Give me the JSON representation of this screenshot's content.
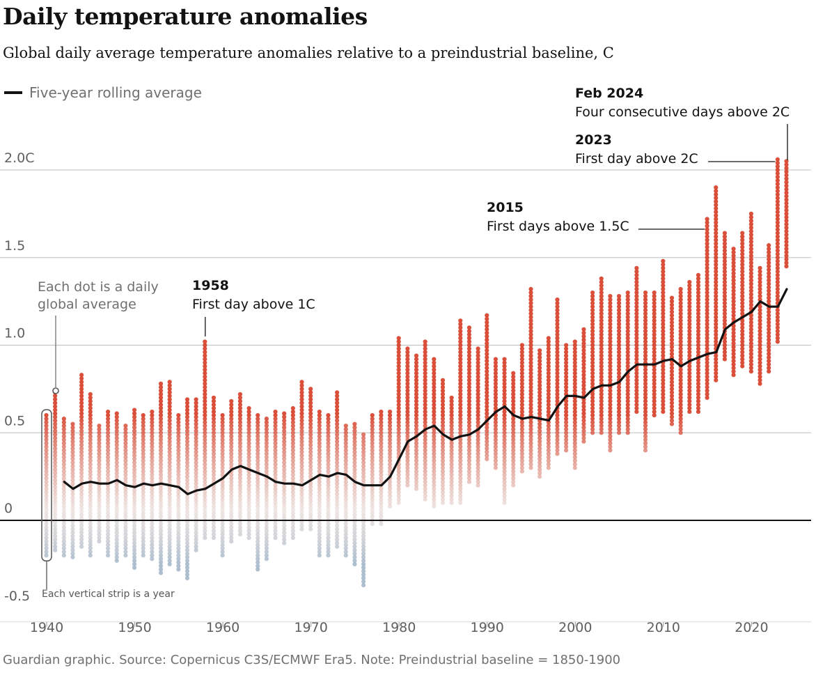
{
  "header": {
    "title": "Daily temperature anomalies",
    "subtitle": "Global daily average temperature anomalies relative to a preindustrial baseline, C"
  },
  "legend": {
    "label": "Five-year rolling average"
  },
  "footer": {
    "source": "Guardian graphic. Source: Copernicus C3S/ECMWF Era5. Note: Preindustrial baseline = 1850-1900"
  },
  "colors": {
    "warm": "#d7412a",
    "cool": "#9fb3c8",
    "line": "#121212",
    "grid": "#bdbdbd"
  },
  "chart_data": {
    "type": "scatter",
    "ylim": [
      -0.5,
      2.0
    ],
    "xlim": [
      1940,
      2024
    ],
    "x_ticks": [
      "1940",
      "1950",
      "1960",
      "1970",
      "1980",
      "1990",
      "2000",
      "2010",
      "2020"
    ],
    "y_ticks": [
      "2.0C",
      "1.5",
      "1.0",
      "0.5",
      "0",
      "-0.5"
    ],
    "annual_ranges": [
      {
        "year": 1940,
        "min": -0.2,
        "max": 0.6
      },
      {
        "year": 1941,
        "min": -0.17,
        "max": 0.73
      },
      {
        "year": 1942,
        "min": -0.2,
        "max": 0.59
      },
      {
        "year": 1943,
        "min": -0.21,
        "max": 0.55
      },
      {
        "year": 1944,
        "min": -0.15,
        "max": 0.83
      },
      {
        "year": 1945,
        "min": -0.2,
        "max": 0.72
      },
      {
        "year": 1946,
        "min": -0.12,
        "max": 0.54
      },
      {
        "year": 1947,
        "min": -0.2,
        "max": 0.62
      },
      {
        "year": 1948,
        "min": -0.23,
        "max": 0.61
      },
      {
        "year": 1949,
        "min": -0.2,
        "max": 0.55
      },
      {
        "year": 1950,
        "min": -0.27,
        "max": 0.63
      },
      {
        "year": 1951,
        "min": -0.2,
        "max": 0.6
      },
      {
        "year": 1952,
        "min": -0.22,
        "max": 0.62
      },
      {
        "year": 1953,
        "min": -0.3,
        "max": 0.78
      },
      {
        "year": 1954,
        "min": -0.25,
        "max": 0.8
      },
      {
        "year": 1955,
        "min": -0.28,
        "max": 0.6
      },
      {
        "year": 1956,
        "min": -0.33,
        "max": 0.7
      },
      {
        "year": 1957,
        "min": -0.17,
        "max": 0.7
      },
      {
        "year": 1958,
        "min": -0.1,
        "max": 1.03
      },
      {
        "year": 1959,
        "min": -0.1,
        "max": 0.7
      },
      {
        "year": 1960,
        "min": -0.2,
        "max": 0.6
      },
      {
        "year": 1961,
        "min": -0.12,
        "max": 0.68
      },
      {
        "year": 1962,
        "min": -0.08,
        "max": 0.72
      },
      {
        "year": 1963,
        "min": -0.1,
        "max": 0.64
      },
      {
        "year": 1964,
        "min": -0.28,
        "max": 0.6
      },
      {
        "year": 1965,
        "min": -0.22,
        "max": 0.58
      },
      {
        "year": 1966,
        "min": -0.1,
        "max": 0.62
      },
      {
        "year": 1967,
        "min": -0.13,
        "max": 0.61
      },
      {
        "year": 1968,
        "min": -0.1,
        "max": 0.65
      },
      {
        "year": 1969,
        "min": -0.05,
        "max": 0.8
      },
      {
        "year": 1970,
        "min": -0.05,
        "max": 0.75
      },
      {
        "year": 1971,
        "min": -0.2,
        "max": 0.62
      },
      {
        "year": 1972,
        "min": -0.2,
        "max": 0.6
      },
      {
        "year": 1973,
        "min": -0.15,
        "max": 0.73
      },
      {
        "year": 1974,
        "min": -0.2,
        "max": 0.55
      },
      {
        "year": 1975,
        "min": -0.25,
        "max": 0.55
      },
      {
        "year": 1976,
        "min": -0.37,
        "max": 0.5
      },
      {
        "year": 1977,
        "min": -0.02,
        "max": 0.6
      },
      {
        "year": 1978,
        "min": -0.02,
        "max": 0.63
      },
      {
        "year": 1979,
        "min": 0.08,
        "max": 0.63
      },
      {
        "year": 1980,
        "min": 0.1,
        "max": 1.05
      },
      {
        "year": 1981,
        "min": 0.2,
        "max": 0.98
      },
      {
        "year": 1982,
        "min": 0.18,
        "max": 0.95
      },
      {
        "year": 1983,
        "min": 0.12,
        "max": 1.02
      },
      {
        "year": 1984,
        "min": 0.08,
        "max": 0.93
      },
      {
        "year": 1985,
        "min": 0.1,
        "max": 0.8
      },
      {
        "year": 1986,
        "min": 0.1,
        "max": 0.7
      },
      {
        "year": 1987,
        "min": 0.1,
        "max": 1.15
      },
      {
        "year": 1988,
        "min": 0.22,
        "max": 1.1
      },
      {
        "year": 1989,
        "min": 0.2,
        "max": 0.98
      },
      {
        "year": 1990,
        "min": 0.35,
        "max": 1.18
      },
      {
        "year": 1991,
        "min": 0.3,
        "max": 0.92
      },
      {
        "year": 1992,
        "min": 0.1,
        "max": 0.92
      },
      {
        "year": 1993,
        "min": 0.2,
        "max": 0.85
      },
      {
        "year": 1994,
        "min": 0.28,
        "max": 1.0
      },
      {
        "year": 1995,
        "min": 0.3,
        "max": 1.32
      },
      {
        "year": 1996,
        "min": 0.25,
        "max": 0.98
      },
      {
        "year": 1997,
        "min": 0.3,
        "max": 1.05
      },
      {
        "year": 1998,
        "min": 0.38,
        "max": 1.27
      },
      {
        "year": 1999,
        "min": 0.4,
        "max": 1.0
      },
      {
        "year": 2000,
        "min": 0.3,
        "max": 1.03
      },
      {
        "year": 2001,
        "min": 0.45,
        "max": 1.1
      },
      {
        "year": 2002,
        "min": 0.5,
        "max": 1.3
      },
      {
        "year": 2003,
        "min": 0.5,
        "max": 1.38
      },
      {
        "year": 2004,
        "min": 0.4,
        "max": 1.28
      },
      {
        "year": 2005,
        "min": 0.5,
        "max": 1.28
      },
      {
        "year": 2006,
        "min": 0.5,
        "max": 1.3
      },
      {
        "year": 2007,
        "min": 0.62,
        "max": 1.45
      },
      {
        "year": 2008,
        "min": 0.4,
        "max": 1.3
      },
      {
        "year": 2009,
        "min": 0.6,
        "max": 1.3
      },
      {
        "year": 2010,
        "min": 0.62,
        "max": 1.48
      },
      {
        "year": 2011,
        "min": 0.55,
        "max": 1.28
      },
      {
        "year": 2012,
        "min": 0.5,
        "max": 1.32
      },
      {
        "year": 2013,
        "min": 0.62,
        "max": 1.36
      },
      {
        "year": 2014,
        "min": 0.62,
        "max": 1.4
      },
      {
        "year": 2015,
        "min": 0.7,
        "max": 1.73
      },
      {
        "year": 2016,
        "min": 0.8,
        "max": 1.9
      },
      {
        "year": 2017,
        "min": 0.92,
        "max": 1.65
      },
      {
        "year": 2018,
        "min": 0.83,
        "max": 1.55
      },
      {
        "year": 2019,
        "min": 0.88,
        "max": 1.65
      },
      {
        "year": 2020,
        "min": 0.85,
        "max": 1.75
      },
      {
        "year": 2021,
        "min": 0.78,
        "max": 1.45
      },
      {
        "year": 2022,
        "min": 0.85,
        "max": 1.57
      },
      {
        "year": 2023,
        "min": 1.02,
        "max": 2.06
      },
      {
        "year": 2024,
        "min": 1.45,
        "max": 2.05
      }
    ],
    "rolling_average": {
      "name": "Five-year rolling average",
      "x": [
        1942,
        1943,
        1944,
        1945,
        1946,
        1947,
        1948,
        1949,
        1950,
        1951,
        1952,
        1953,
        1954,
        1955,
        1956,
        1957,
        1958,
        1959,
        1960,
        1961,
        1962,
        1963,
        1964,
        1965,
        1966,
        1967,
        1968,
        1969,
        1970,
        1971,
        1972,
        1973,
        1974,
        1975,
        1976,
        1977,
        1978,
        1979,
        1980,
        1981,
        1982,
        1983,
        1984,
        1985,
        1986,
        1987,
        1988,
        1989,
        1990,
        1991,
        1992,
        1993,
        1994,
        1995,
        1996,
        1997,
        1998,
        1999,
        2000,
        2001,
        2002,
        2003,
        2004,
        2005,
        2006,
        2007,
        2008,
        2009,
        2010,
        2011,
        2012,
        2013,
        2014,
        2015,
        2016,
        2017,
        2018,
        2019,
        2020,
        2021,
        2022,
        2023,
        2024
      ],
      "y": [
        0.22,
        0.18,
        0.21,
        0.22,
        0.21,
        0.21,
        0.23,
        0.2,
        0.19,
        0.21,
        0.2,
        0.21,
        0.2,
        0.19,
        0.15,
        0.17,
        0.18,
        0.21,
        0.24,
        0.29,
        0.31,
        0.29,
        0.27,
        0.25,
        0.22,
        0.21,
        0.21,
        0.2,
        0.23,
        0.26,
        0.25,
        0.27,
        0.26,
        0.22,
        0.2,
        0.2,
        0.2,
        0.25,
        0.35,
        0.45,
        0.48,
        0.52,
        0.54,
        0.49,
        0.46,
        0.48,
        0.49,
        0.52,
        0.57,
        0.62,
        0.65,
        0.6,
        0.58,
        0.59,
        0.58,
        0.57,
        0.65,
        0.71,
        0.71,
        0.7,
        0.75,
        0.77,
        0.77,
        0.79,
        0.85,
        0.89,
        0.89,
        0.89,
        0.91,
        0.92,
        0.88,
        0.91,
        0.93,
        0.95,
        0.96,
        1.09,
        1.13,
        1.16,
        1.19,
        1.25,
        1.22,
        1.22,
        1.32
      ]
    },
    "annotations": [
      {
        "year_label": "Feb 2024",
        "text": "Four consecutive days above 2C"
      },
      {
        "year_label": "2023",
        "text": "First day above 2C"
      },
      {
        "year_label": "2015",
        "text": "First days above 1.5C"
      },
      {
        "year_label": "1958",
        "text": "First day above 1C"
      }
    ],
    "explainers": {
      "dot": [
        "Each dot is a daily",
        "global average"
      ],
      "strip": "Each vertical strip is a year"
    }
  }
}
